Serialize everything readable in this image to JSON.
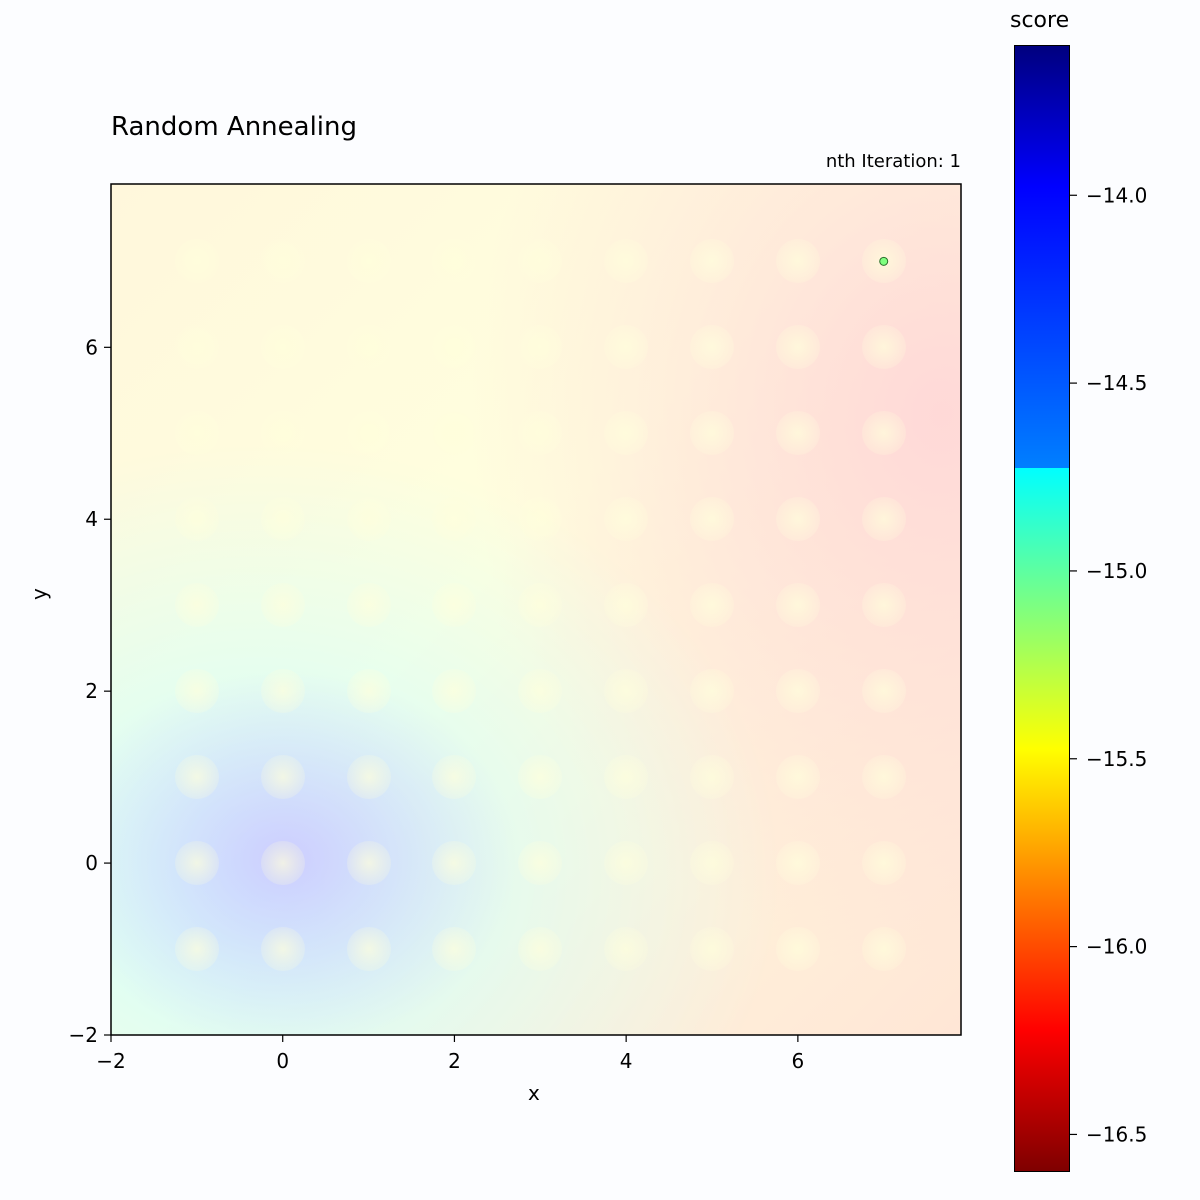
{
  "chart_data": {
    "type": "heatmap",
    "title": "Random Annealing",
    "annotation": "nth Iteration: 1",
    "xlabel": "x",
    "ylabel": "y",
    "xlim": [
      -2,
      7.9
    ],
    "ylim": [
      -2,
      7.9
    ],
    "x_ticks": [
      {
        "value": -2,
        "label": "−2"
      },
      {
        "value": 0,
        "label": "0"
      },
      {
        "value": 2,
        "label": "2"
      },
      {
        "value": 4,
        "label": "4"
      },
      {
        "value": 6,
        "label": "6"
      }
    ],
    "y_ticks": [
      {
        "value": -2,
        "label": "−2"
      },
      {
        "value": 0,
        "label": "0"
      },
      {
        "value": 2,
        "label": "2"
      },
      {
        "value": 4,
        "label": "4"
      },
      {
        "value": 6,
        "label": "6"
      }
    ],
    "colormap": "jet",
    "colorbar": {
      "label": "score",
      "range": [
        -16.6,
        -13.6
      ],
      "ticks": [
        {
          "value": -14.0,
          "label": "−14.0"
        },
        {
          "value": -14.5,
          "label": "−14.5"
        },
        {
          "value": -15.0,
          "label": "−15.0"
        },
        {
          "value": -15.5,
          "label": "−15.5"
        },
        {
          "value": -16.0,
          "label": "−16.0"
        },
        {
          "value": -16.5,
          "label": "−16.5"
        }
      ]
    },
    "points": [
      {
        "x": 7.0,
        "y": 7.0,
        "color": "#7fff7f"
      }
    ],
    "grid": false
  }
}
